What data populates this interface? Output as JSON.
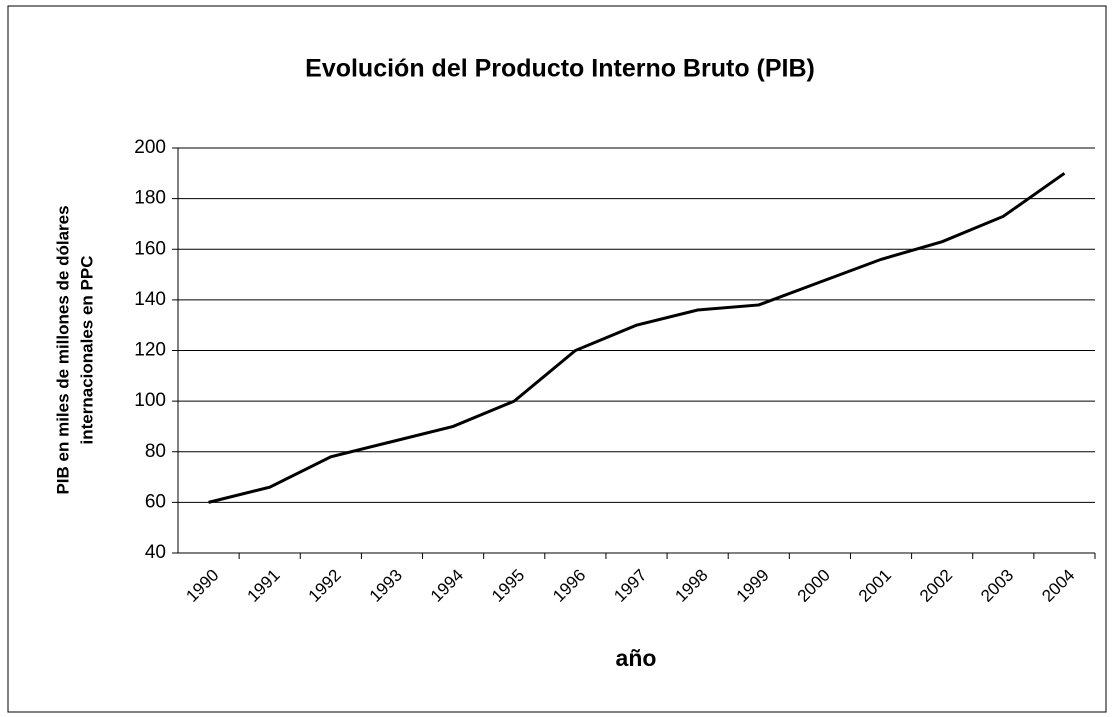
{
  "chart_data": {
    "type": "line",
    "title": "Evolución del Producto Interno Bruto (PIB)",
    "x_label": "año",
    "y_label": [
      "PIB en miles de millones de dólares",
      "internacionales en PPC"
    ],
    "categories": [
      "1990",
      "1991",
      "1992",
      "1993",
      "1994",
      "1995",
      "1996",
      "1997",
      "1998",
      "1999",
      "2000",
      "2001",
      "2002",
      "2003",
      "2004"
    ],
    "values": [
      60,
      66,
      78,
      84,
      90,
      100,
      120,
      130,
      136,
      138,
      147,
      156,
      163,
      173,
      190
    ],
    "color": "#000000",
    "ylim": [
      40,
      200
    ],
    "yticks": [
      40,
      60,
      80,
      100,
      120,
      140,
      160,
      180,
      200
    ],
    "grid": true
  }
}
